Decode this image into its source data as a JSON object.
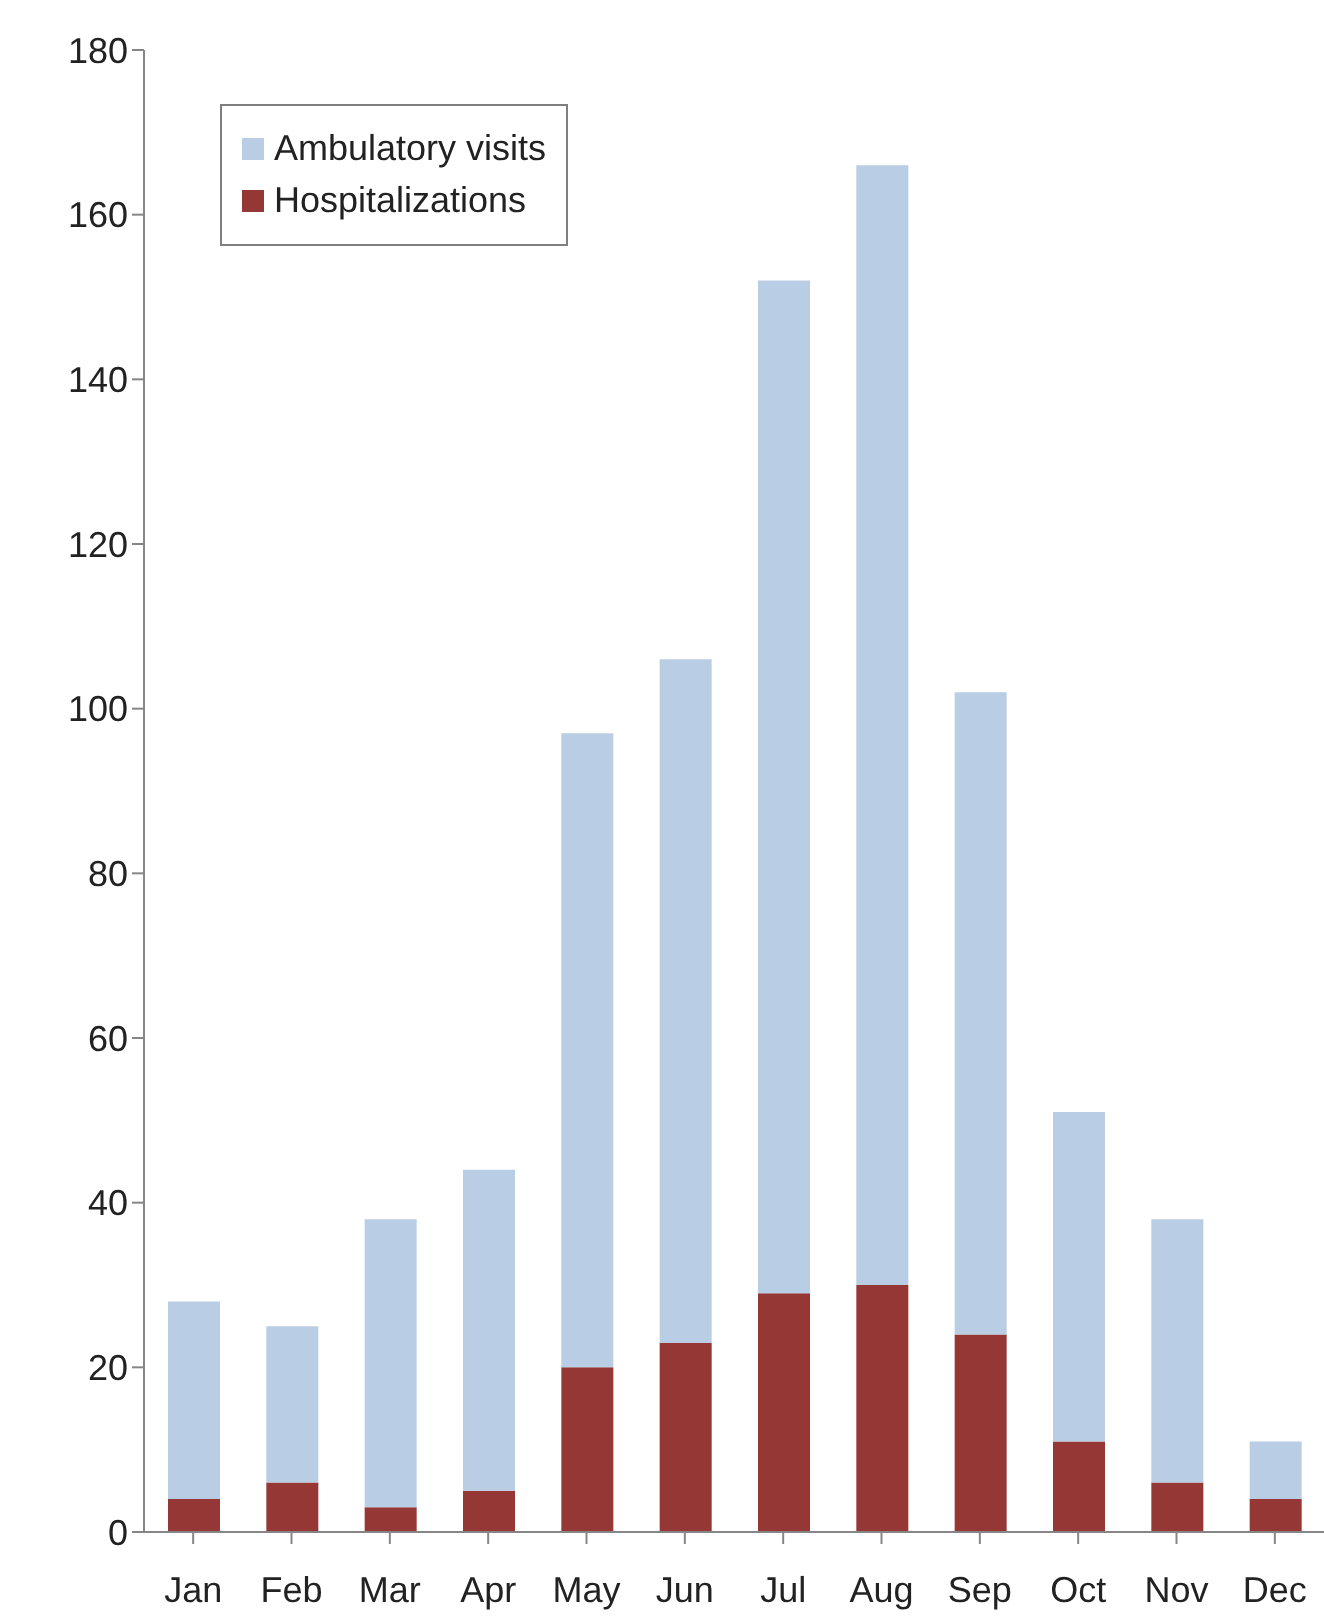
{
  "chart_data": {
    "type": "bar",
    "stacked": true,
    "categories": [
      "Jan",
      "Feb",
      "Mar",
      "Apr",
      "May",
      "Jun",
      "Jul",
      "Aug",
      "Sep",
      "Oct",
      "Nov",
      "Dec"
    ],
    "series": [
      {
        "name": "Hospitalizations",
        "color": "#953735",
        "values": [
          4,
          6,
          3,
          5,
          20,
          23,
          29,
          30,
          24,
          11,
          6,
          4
        ]
      },
      {
        "name": "Ambulatory visits",
        "color": "#b9cde5",
        "values": [
          24,
          19,
          35,
          39,
          77,
          83,
          123,
          136,
          78,
          40,
          32,
          7
        ]
      }
    ],
    "ylim": [
      0,
      180
    ],
    "yticks": [
      0,
      20,
      40,
      60,
      80,
      100,
      120,
      140,
      160,
      180
    ],
    "grid": false,
    "legend": "top left"
  }
}
